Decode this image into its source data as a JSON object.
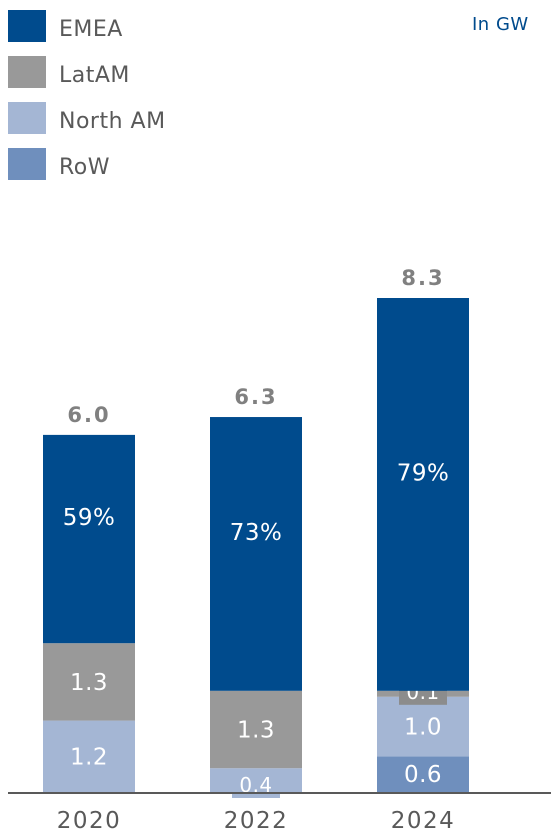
{
  "unit_label": "In GW",
  "colors": {
    "EMEA": "#004b8d",
    "LatAM": "#999999",
    "North AM": "#a4b6d4",
    "RoW": "#6f8fbd",
    "label_box": "#8c8c8c"
  },
  "chart_data": {
    "type": "bar",
    "stacked": true,
    "categories": [
      "2020",
      "2022",
      "2024"
    ],
    "totals": [
      "6.0",
      "6.3",
      "8.3"
    ],
    "ylim": [
      0,
      8.3
    ],
    "legend": [
      "EMEA",
      "LatAM",
      "North AM",
      "RoW"
    ],
    "legend_placement": "top-left",
    "series": [
      {
        "name": "RoW",
        "values": [
          0.0,
          0.0,
          0.6
        ],
        "labels": [
          "",
          "",
          "0.6"
        ]
      },
      {
        "name": "North AM",
        "values": [
          1.2,
          0.4,
          1.0
        ],
        "labels": [
          "1.2",
          "0.4",
          "1.0"
        ]
      },
      {
        "name": "LatAM",
        "values": [
          1.3,
          1.3,
          0.1
        ],
        "labels": [
          "1.3",
          "1.3",
          "0.1"
        ]
      },
      {
        "name": "EMEA",
        "values": [
          3.5,
          4.6,
          6.6
        ],
        "labels": [
          "59%",
          "73%",
          "79%"
        ]
      }
    ]
  }
}
